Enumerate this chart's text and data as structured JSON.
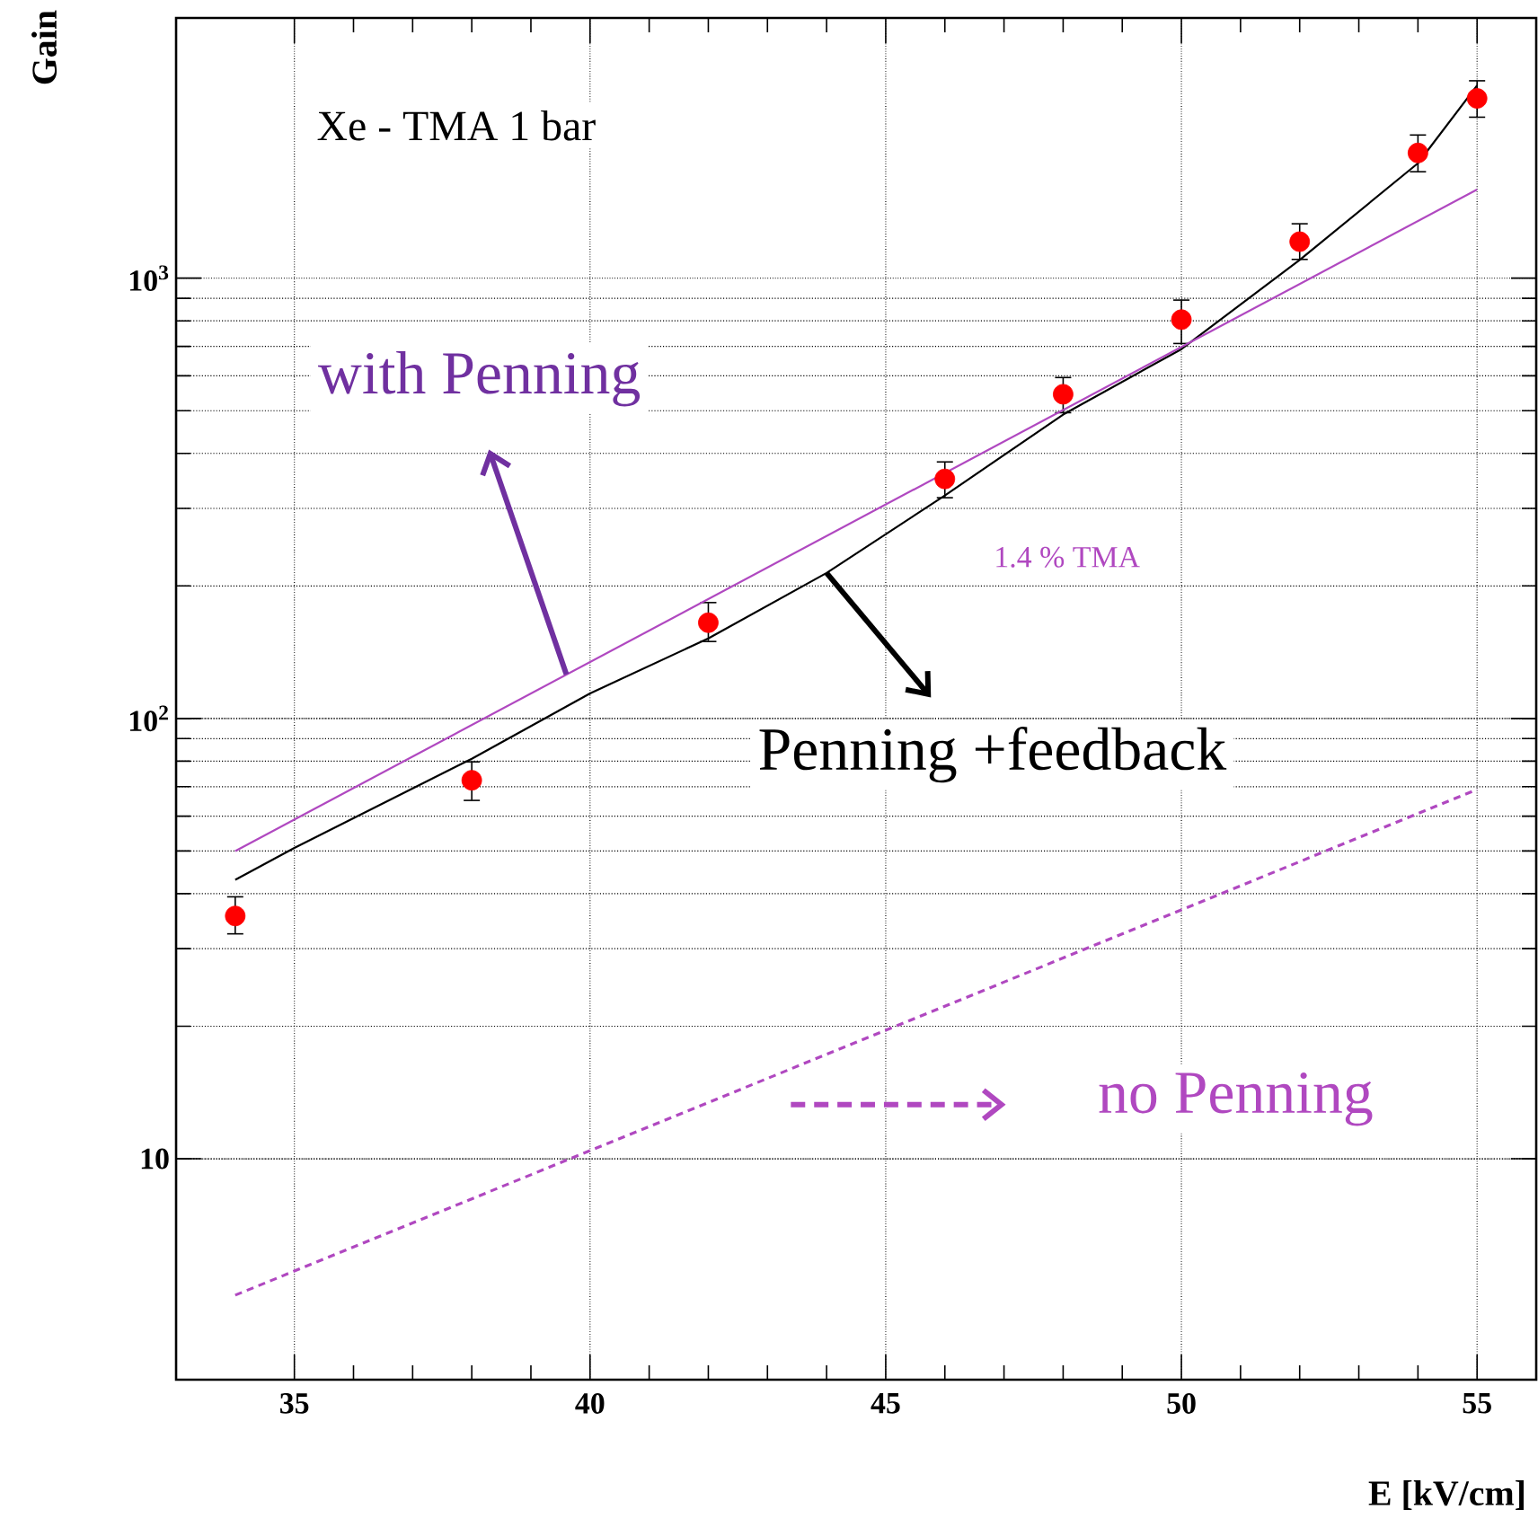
{
  "chart_data": {
    "type": "scatter",
    "xlabel": "E [kV/cm]",
    "ylabel": "Gain",
    "annotations": [
      "Xe - TMA  1 bar",
      "1.4 % TMA",
      {
        "text": "Penning +feedback",
        "x": 44,
        "y": 214
      },
      {
        "text": "with Penning",
        "x": 39.6,
        "y": 126
      }
    ],
    "x": [
      34,
      38,
      42,
      46,
      48,
      50,
      52,
      54,
      55
    ],
    "series": [
      {
        "color": "#ff0000",
        "values": [
          35.6,
          72.4,
          165,
          350,
          545,
          805,
          1210,
          1925,
          2560
        ],
        "errors": [
          [
            32.3,
            39.5
          ],
          [
            64.9,
            80
          ],
          [
            149,
            184
          ],
          [
            316,
            384
          ],
          [
            493,
            597
          ],
          [
            708,
            895
          ],
          [
            1099,
            1334
          ],
          [
            1738,
            2122
          ],
          [
            2312,
            2818
          ]
        ]
      },
      {
        "type": "line",
        "color": "#000000",
        "x": [
          34,
          35,
          38,
          40,
          42,
          44,
          46,
          48,
          50,
          52,
          54,
          55
        ],
        "values": [
          43,
          50.8,
          81,
          114,
          152,
          214,
          321,
          490,
          690,
          1100,
          1824,
          2740
        ]
      },
      {
        "type": "line",
        "color": "#b048c0",
        "x": [
          34,
          55
        ],
        "values": [
          50,
          1590
        ]
      },
      {
        "type": "line",
        "name": "no Penning",
        "color": "#b048c0",
        "line_style": "dashed",
        "x": [
          34,
          55
        ],
        "values": [
          4.9,
          69
        ]
      }
    ],
    "legend": "bottom right",
    "log": true,
    "grid": true,
    "xlim": [
      33,
      56
    ],
    "ylim": [
      3.15,
      3900
    ],
    "xticks": [
      35,
      40,
      45,
      50,
      55
    ],
    "yticks": [
      10,
      {
        "value": 100,
        "label": "10$^{2}$"
      },
      {
        "value": 1000,
        "label": "10$^{3}$"
      }
    ]
  }
}
